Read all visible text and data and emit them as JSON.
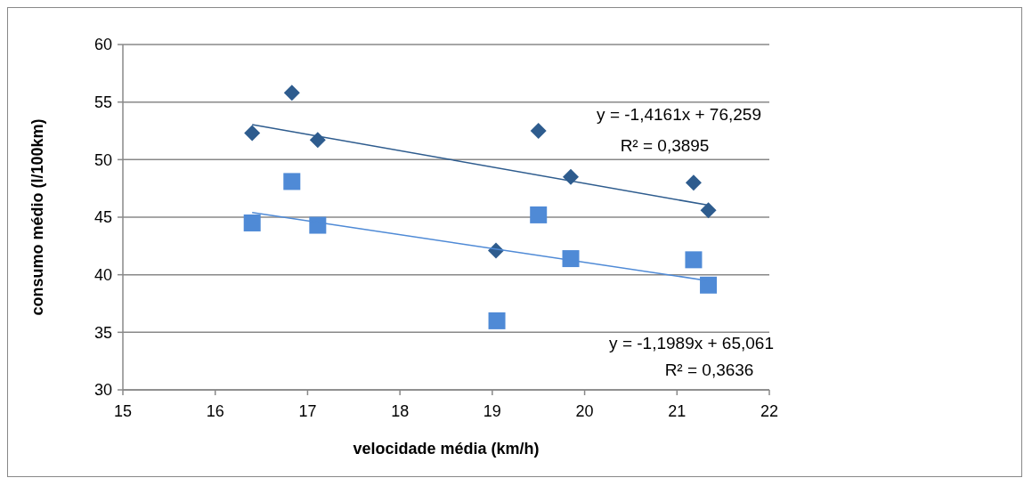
{
  "chart_data": {
    "type": "scatter",
    "xlabel": "velocidade média (km/h)",
    "ylabel": "consumo médio (l/100km)",
    "xlim": [
      15,
      22
    ],
    "xticks": [
      15,
      16,
      17,
      18,
      19,
      20,
      21,
      22
    ],
    "ylim": [
      30,
      60
    ],
    "yticks": [
      30,
      35,
      40,
      45,
      50,
      55,
      60
    ],
    "grid": "y",
    "series": [
      {
        "marker": "diamond",
        "color": "#2e5c8e",
        "x": [
          16.4,
          16.83,
          17.11,
          19.04,
          19.5,
          19.85,
          21.18,
          21.34
        ],
        "values": [
          52.3,
          55.8,
          51.7,
          42.1,
          52.5,
          48.5,
          48.0,
          45.6
        ]
      },
      {
        "marker": "square",
        "color": "#4f8ad6",
        "x": [
          16.4,
          16.83,
          17.11,
          19.05,
          19.5,
          19.85,
          21.18,
          21.34
        ],
        "values": [
          44.5,
          48.1,
          44.3,
          36.0,
          45.2,
          41.4,
          41.3,
          39.1
        ]
      },
      {
        "type": "line",
        "marker": "none",
        "color": "#2e5c8e",
        "x": [
          16.4,
          21.34
        ],
        "values": [
          53.04,
          46.04
        ]
      },
      {
        "type": "line",
        "marker": "none",
        "color": "#4f8ad6",
        "x": [
          16.4,
          21.34
        ],
        "values": [
          45.4,
          39.48
        ]
      }
    ],
    "annotations": [
      "y = -1,4161x + 76,259",
      "R² = 0,3895",
      "y = -1,1989x + 65,061",
      "R² = 0,3636"
    ]
  }
}
